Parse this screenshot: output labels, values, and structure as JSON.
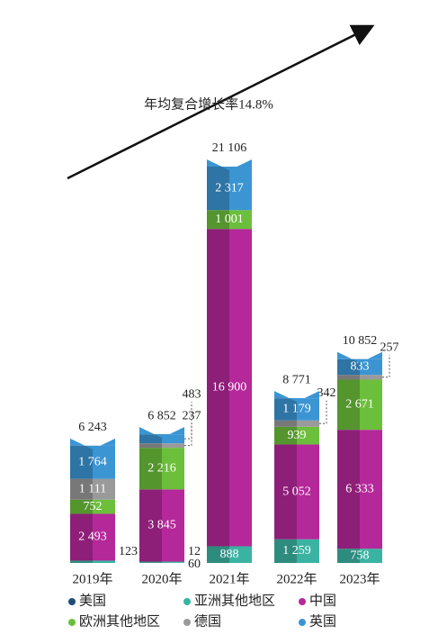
{
  "chart_data": {
    "type": "stacked_bar",
    "annotation": "年均复合增长率14.8%",
    "categories": [
      "2019年",
      "2020年",
      "2021年",
      "2022年",
      "2023年"
    ],
    "totals": [
      6243,
      6852,
      21106,
      8771,
      10852
    ],
    "total_labels": [
      "6 243",
      "6 852",
      "21 106",
      "8 771",
      "10 852"
    ],
    "series": [
      {
        "name": "美国",
        "color": "#1f4e79",
        "values": [
          null,
          12,
          null,
          null,
          null
        ],
        "value_labels": [
          null,
          "12",
          null,
          null,
          null
        ]
      },
      {
        "name": "亚洲其他地区",
        "color": "#3bb3a3",
        "values": [
          123,
          60,
          888,
          1259,
          758
        ],
        "value_labels": [
          "123",
          "60",
          "888",
          "1 259",
          "758"
        ]
      },
      {
        "name": "中国",
        "color": "#b5289a",
        "values": [
          2493,
          3845,
          16900,
          5052,
          6333
        ],
        "value_labels": [
          "2 493",
          "3 845",
          "16 900",
          "5 052",
          "6 333"
        ]
      },
      {
        "name": "欧洲其他地区",
        "color": "#6cbf3b",
        "values": [
          752,
          2216,
          1001,
          939,
          2671
        ],
        "value_labels": [
          "752",
          "2 216",
          "1 001",
          "939",
          "2 671"
        ]
      },
      {
        "name": "德国",
        "color": "#9a9a9a",
        "values": [
          1111,
          237,
          null,
          342,
          257
        ],
        "value_labels": [
          "1 111",
          "237",
          null,
          "342",
          "257"
        ]
      },
      {
        "name": "英国",
        "color": "#3b95d3",
        "values": [
          1764,
          483,
          2317,
          1179,
          833
        ],
        "value_labels": [
          "1 764",
          "483",
          "2 317",
          "1 179",
          "833"
        ]
      }
    ]
  }
}
